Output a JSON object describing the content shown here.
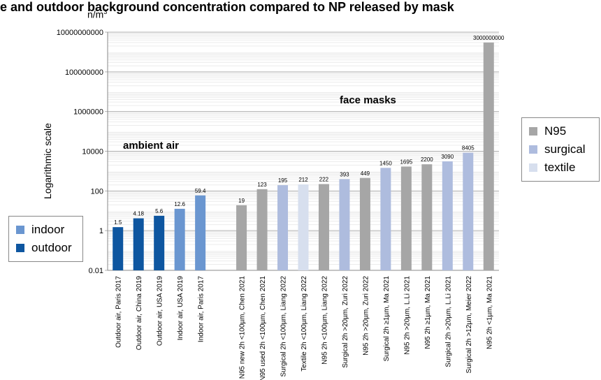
{
  "header": {
    "title": "e and outdoor background concentration compared to NP released by mask",
    "unit": "n/m",
    "unit_sup": "3"
  },
  "annotations": {
    "ambient": "ambient air",
    "masks": "face masks"
  },
  "legend_source": {
    "items": [
      {
        "label": "indoor",
        "color": "#6a96d0"
      },
      {
        "label": "outdoor",
        "color": "#0e56a0"
      }
    ]
  },
  "legend_mask": {
    "items": [
      {
        "label": "N95",
        "color": "#a6a6a6"
      },
      {
        "label": "surgical",
        "color": "#aebcde"
      },
      {
        "label": "textile",
        "color": "#d7dfee"
      }
    ]
  },
  "chart_data": {
    "type": "bar",
    "ylabel": "Logarithmic scale",
    "yscale": "log",
    "ylim": [
      0.01,
      10000000000
    ],
    "y_ticks": [
      "0.01",
      "1",
      "100",
      "10000",
      "1000000",
      "100000000",
      "10000000000"
    ],
    "categories": [
      "Outdoor air, Paris 2017",
      "Outdoor air, China 2019",
      "Outdoor air, USA 2019",
      "Indoor air, USA 2019",
      "Indoor air, Paris 2017",
      "",
      "N95 new 2h <100µm, Chen 2021",
      "N95 used 2h <100µm, Chen 2021",
      "Surgical 2h <100µm, Liang 2022",
      "Textile 2h <100µm, Liang 2022",
      "N95 2h <100µm, Liang 2022",
      "Surgical 2h >20µm, Zuri 2022",
      "N95 2h >20µm, Zuri 2022",
      "Surgical 2h ≥1µm, Ma 2021",
      "N95 2h >20µm, L.Li 2021",
      "N95 2h ≥1µm, Ma 2021",
      "Surgical 2h >20µm, L.Li 2021",
      "Surgical 2h >12µm, Meier 2022",
      "N95 2h <1µm, Ma 2021"
    ],
    "values": [
      1.5,
      4.18,
      5.6,
      12.6,
      59.4,
      null,
      19,
      123,
      195,
      212,
      222,
      393,
      449,
      1450,
      1695,
      2200,
      3090,
      8405,
      3000000000
    ],
    "data_labels": [
      "1.5",
      "4.18",
      "5.6",
      "12.6",
      "59.4",
      "",
      "19",
      "123",
      "195",
      "212",
      "222",
      "393",
      "449",
      "1450",
      "1695",
      "2200",
      "3090",
      "8405",
      "3000000000"
    ],
    "groups": [
      "outdoor",
      "outdoor",
      "outdoor",
      "indoor",
      "indoor",
      "",
      "N95",
      "N95",
      "surgical",
      "textile",
      "N95",
      "surgical",
      "N95",
      "surgical",
      "N95",
      "N95",
      "surgical",
      "surgical",
      "N95"
    ],
    "colors": {
      "outdoor": "#0e56a0",
      "indoor": "#6a96d0",
      "N95": "#a6a6a6",
      "surgical": "#aebcde",
      "textile": "#d7dfee"
    },
    "grid": true
  }
}
